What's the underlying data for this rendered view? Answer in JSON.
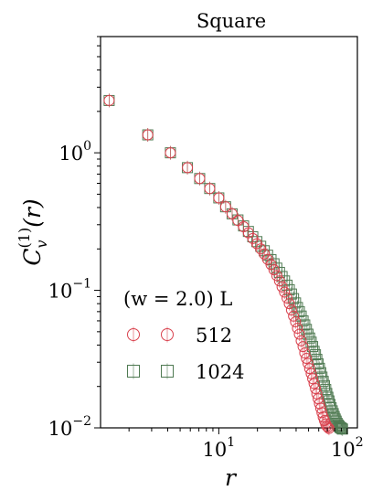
{
  "chart_data": {
    "type": "scatter",
    "title": "Square",
    "xlabel": "r",
    "ylabel": "C_v^(1)(r)",
    "xscale": "log",
    "yscale": "log",
    "xlim": [
      1.2,
      120
    ],
    "ylim": [
      0.01,
      7
    ],
    "x_ticks": [
      {
        "value": 10,
        "base": "10",
        "exp": "1"
      },
      {
        "value": 100,
        "base": "10",
        "exp": "2"
      }
    ],
    "y_ticks": [
      {
        "value": 1,
        "base": "10",
        "exp": "0"
      },
      {
        "value": 0.1,
        "base": "10",
        "exp": "−1"
      },
      {
        "value": 0.01,
        "base": "10",
        "exp": "−2"
      }
    ],
    "grid": false,
    "legend": {
      "placement": "lower-left",
      "title": "(w = 2.0) L"
    },
    "series": [
      {
        "name": "512",
        "marker": "circle",
        "color": "#d9434f",
        "x": [
          1.4,
          2.8,
          4.2,
          5.7,
          7.1,
          8.5,
          10,
          11.3,
          12.7,
          14.1,
          15.6,
          17,
          18.4,
          19.8,
          21.2,
          22.6,
          24,
          25.5,
          26.9,
          28.3,
          29.7,
          31.1,
          32.5,
          34,
          35.4,
          36.8,
          38.2,
          39.6,
          41,
          42.4,
          43.8,
          45.3,
          46.7,
          48.1,
          49.5,
          51,
          52.4,
          53.8,
          55.2,
          56.6,
          58,
          59.4,
          60.8,
          62.2,
          63.6,
          65,
          66.5,
          68,
          69.3,
          70.7,
          72.1
        ],
        "y": [
          2.4,
          1.35,
          1.0,
          0.78,
          0.65,
          0.55,
          0.47,
          0.405,
          0.36,
          0.322,
          0.29,
          0.262,
          0.238,
          0.218,
          0.2,
          0.184,
          0.168,
          0.154,
          0.141,
          0.128,
          0.117,
          0.106,
          0.097,
          0.088,
          0.08,
          0.072,
          0.065,
          0.059,
          0.053,
          0.048,
          0.043,
          0.039,
          0.035,
          0.032,
          0.0295,
          0.027,
          0.0248,
          0.0228,
          0.021,
          0.0193,
          0.0177,
          0.0163,
          0.015,
          0.0139,
          0.0129,
          0.012,
          0.0113,
          0.0107,
          0.0103,
          0.0101,
          0.0099
        ]
      },
      {
        "name": "1024",
        "marker": "square",
        "color": "#4f7a52",
        "x": [
          1.4,
          2.8,
          4.2,
          5.7,
          7.1,
          8.5,
          10,
          11.3,
          12.7,
          14.1,
          15.6,
          17,
          18.4,
          19.8,
          21.2,
          22.6,
          24,
          25.5,
          26.9,
          28.3,
          29.7,
          31.1,
          32.5,
          34,
          35.4,
          36.8,
          38.2,
          39.6,
          41,
          42.4,
          43.8,
          45.3,
          46.7,
          48.1,
          49.5,
          51,
          52.4,
          53.8,
          55.2,
          56.6,
          58,
          59.4,
          60.8,
          62.2,
          63.6,
          65,
          66.5,
          68,
          69.3,
          70.7,
          72.1,
          73.5,
          74.9,
          76.4,
          77.8,
          79.2,
          80.6,
          82,
          83.4,
          84.9,
          86.3,
          87.7,
          89.1,
          90.5,
          91.9
        ],
        "y": [
          2.4,
          1.35,
          1.0,
          0.78,
          0.65,
          0.55,
          0.47,
          0.405,
          0.36,
          0.325,
          0.294,
          0.268,
          0.245,
          0.226,
          0.209,
          0.194,
          0.18,
          0.167,
          0.156,
          0.145,
          0.135,
          0.126,
          0.117,
          0.109,
          0.101,
          0.094,
          0.087,
          0.081,
          0.075,
          0.07,
          0.065,
          0.06,
          0.056,
          0.052,
          0.048,
          0.045,
          0.042,
          0.039,
          0.036,
          0.034,
          0.0315,
          0.0292,
          0.0271,
          0.0252,
          0.0234,
          0.0218,
          0.0203,
          0.019,
          0.0178,
          0.0167,
          0.0157,
          0.0148,
          0.014,
          0.0133,
          0.0127,
          0.0121,
          0.0116,
          0.0112,
          0.0108,
          0.0105,
          0.0103,
          0.0101,
          0.01,
          0.0099,
          0.0098
        ]
      }
    ]
  }
}
